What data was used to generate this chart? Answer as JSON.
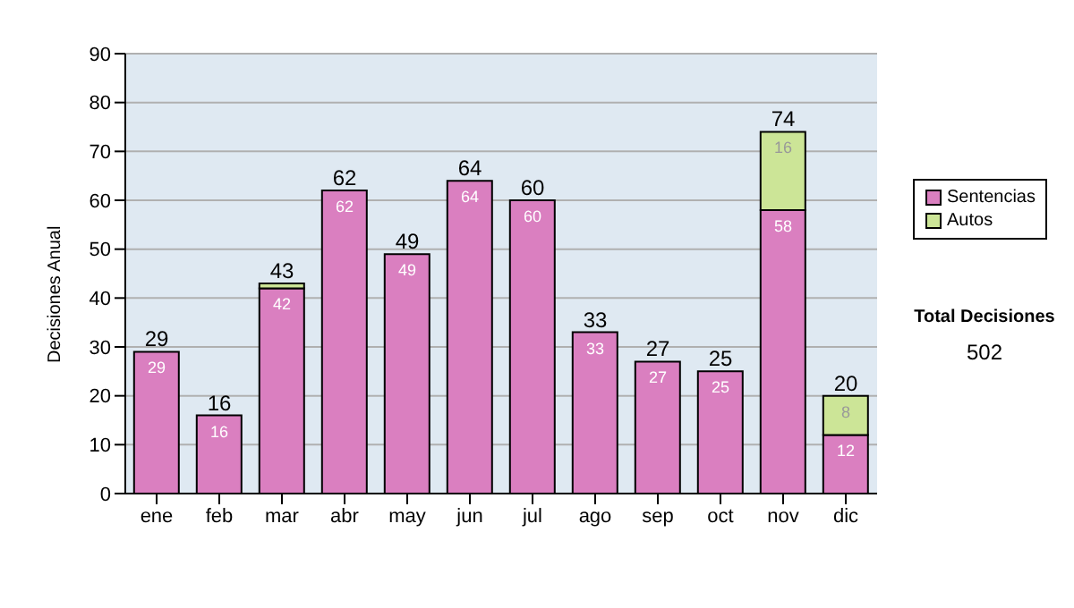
{
  "chart_data": {
    "type": "bar",
    "stacked": true,
    "ylabel": "Decisiones Anual",
    "categories": [
      "ene",
      "feb",
      "mar",
      "abr",
      "may",
      "jun",
      "jul",
      "ago",
      "sep",
      "oct",
      "nov",
      "dic"
    ],
    "series": [
      {
        "name": "Sentencias",
        "color": "#da7fc0",
        "values": [
          29,
          16,
          42,
          62,
          49,
          64,
          60,
          33,
          27,
          25,
          58,
          12
        ],
        "value_labels": [
          "29",
          "16",
          "42",
          "62",
          "49",
          "64",
          "60",
          "33",
          "27",
          "25",
          "58",
          "12"
        ]
      },
      {
        "name": "Autos",
        "color": "#cce597",
        "values": [
          0,
          0,
          1,
          0,
          0,
          0,
          0,
          0,
          0,
          0,
          16,
          8
        ],
        "value_labels": [
          null,
          null,
          null,
          null,
          null,
          null,
          null,
          null,
          null,
          null,
          "16",
          "8"
        ]
      }
    ],
    "totals": [
      "29",
      "16",
      "43",
      "62",
      "49",
      "64",
      "60",
      "33",
      "27",
      "25",
      "74",
      "20"
    ],
    "ylim": [
      0,
      90
    ],
    "yticks": [
      0,
      10,
      20,
      30,
      40,
      50,
      60,
      70,
      80,
      90
    ],
    "grid": "y",
    "legend": "right",
    "annotations": [
      "Total Decisiones",
      "502"
    ]
  }
}
